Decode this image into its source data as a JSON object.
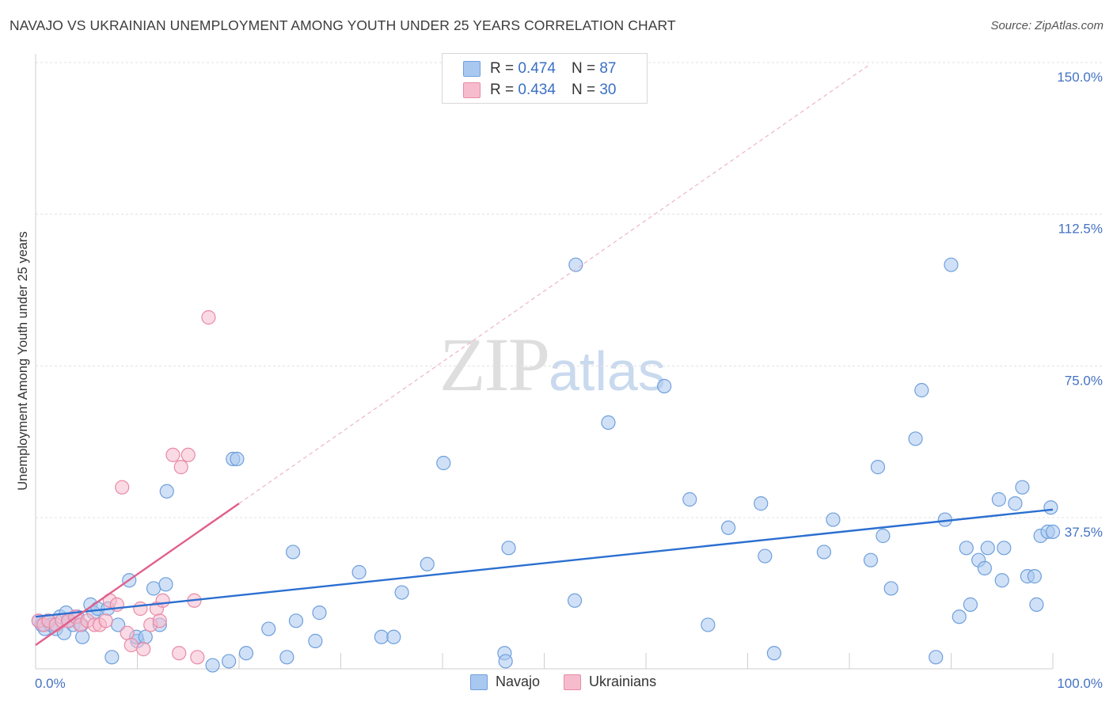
{
  "title": "NAVAJO VS UKRAINIAN UNEMPLOYMENT AMONG YOUTH UNDER 25 YEARS CORRELATION CHART",
  "source": "Source: ZipAtlas.com",
  "watermark": {
    "zip": "ZIP",
    "atlas": "atlas"
  },
  "legend": {
    "rows": [
      {
        "r_label": "R =",
        "r_value": "0.474",
        "n_label": "N =",
        "n_value": "87",
        "color": "#a9c8f0",
        "border": "#6f9fdc"
      },
      {
        "r_label": "R =",
        "r_value": "0.434",
        "n_label": "N =",
        "n_value": "30",
        "color": "#f6bccd",
        "border": "#e88aa6"
      }
    ]
  },
  "bottom_legend": [
    {
      "label": "Navajo",
      "color": "#a9c8f0",
      "border": "#6f9fdc"
    },
    {
      "label": "Ukrainians",
      "color": "#f6bccd",
      "border": "#e88aa6"
    }
  ],
  "chart_data": {
    "type": "scatter",
    "title": "NAVAJO VS UKRAINIAN UNEMPLOYMENT AMONG YOUTH UNDER 25 YEARS CORRELATION CHART",
    "xlabel": "",
    "ylabel": "Unemployment Among Youth under 25 years",
    "xlim": [
      0,
      100
    ],
    "ylim": [
      0,
      150
    ],
    "x_tick_labels": [
      "0.0%",
      "100.0%"
    ],
    "y_ticks": [
      37.5,
      75.0,
      112.5,
      150.0
    ],
    "y_tick_labels": [
      "37.5%",
      "75.0%",
      "112.5%",
      "150.0%"
    ],
    "grid": true,
    "series": [
      {
        "name": "Navajo",
        "color": "#6f9fdc",
        "fill": "#a9c8f0",
        "trend": {
          "x": [
            0,
            100
          ],
          "y": [
            13.0,
            39.5
          ],
          "color": "#2b6fd0"
        },
        "points": [
          [
            0.3,
            12
          ],
          [
            0.6,
            11
          ],
          [
            0.9,
            10
          ],
          [
            1.2,
            12
          ],
          [
            1.5,
            11
          ],
          [
            2.0,
            10
          ],
          [
            2.4,
            13
          ],
          [
            2.8,
            9
          ],
          [
            3.0,
            14
          ],
          [
            3.3,
            12
          ],
          [
            3.7,
            11
          ],
          [
            4.1,
            13
          ],
          [
            4.5,
            11
          ],
          [
            4.6,
            8
          ],
          [
            5.4,
            16
          ],
          [
            5.7,
            14
          ],
          [
            6.1,
            15
          ],
          [
            7.1,
            15
          ],
          [
            7.5,
            3
          ],
          [
            8.1,
            11
          ],
          [
            9.2,
            22
          ],
          [
            10.0,
            7
          ],
          [
            9.9,
            8
          ],
          [
            10.8,
            8
          ],
          [
            11.6,
            20
          ],
          [
            12.8,
            21
          ],
          [
            12.9,
            44
          ],
          [
            12.2,
            11
          ],
          [
            19.4,
            52
          ],
          [
            19.8,
            52
          ],
          [
            19.0,
            2
          ],
          [
            20.7,
            4
          ],
          [
            17.4,
            1
          ],
          [
            22.9,
            10
          ],
          [
            24.7,
            3
          ],
          [
            25.3,
            29
          ],
          [
            25.6,
            12
          ],
          [
            27.5,
            7
          ],
          [
            27.9,
            14
          ],
          [
            31.8,
            24
          ],
          [
            34.0,
            8
          ],
          [
            35.2,
            8
          ],
          [
            36.0,
            19
          ],
          [
            38.5,
            26
          ],
          [
            40.1,
            51
          ],
          [
            46.1,
            4
          ],
          [
            46.2,
            2
          ],
          [
            46.5,
            30
          ],
          [
            53.0,
            17
          ],
          [
            53.1,
            100
          ],
          [
            56.3,
            61
          ],
          [
            61.8,
            70
          ],
          [
            64.3,
            42
          ],
          [
            66.1,
            11
          ],
          [
            68.1,
            35
          ],
          [
            71.3,
            41
          ],
          [
            71.7,
            28
          ],
          [
            72.6,
            4
          ],
          [
            77.5,
            29
          ],
          [
            78.4,
            37
          ],
          [
            82.1,
            27
          ],
          [
            82.8,
            50
          ],
          [
            83.3,
            33
          ],
          [
            84.1,
            20
          ],
          [
            86.5,
            57
          ],
          [
            87.1,
            69
          ],
          [
            88.5,
            3
          ],
          [
            89.4,
            37
          ],
          [
            90.0,
            100
          ],
          [
            90.8,
            13
          ],
          [
            91.5,
            30
          ],
          [
            91.9,
            16
          ],
          [
            92.7,
            27
          ],
          [
            93.3,
            25
          ],
          [
            93.6,
            30
          ],
          [
            94.7,
            42
          ],
          [
            95.0,
            22
          ],
          [
            95.2,
            30
          ],
          [
            96.3,
            41
          ],
          [
            97.0,
            45
          ],
          [
            97.5,
            23
          ],
          [
            98.2,
            23
          ],
          [
            98.4,
            16
          ],
          [
            98.8,
            33
          ],
          [
            99.5,
            34
          ],
          [
            99.8,
            40
          ],
          [
            100,
            34
          ]
        ]
      },
      {
        "name": "Ukrainians",
        "color": "#e88aa6",
        "fill": "#f6bccd",
        "trend": {
          "x": [
            0,
            20
          ],
          "y": [
            6.0,
            41.0
          ],
          "color": "#e0608a",
          "dashed_extension_to_x": 82
        },
        "points": [
          [
            0.3,
            12
          ],
          [
            0.8,
            11
          ],
          [
            1.3,
            12
          ],
          [
            2.0,
            11
          ],
          [
            2.6,
            12
          ],
          [
            3.2,
            12
          ],
          [
            3.9,
            13
          ],
          [
            4.4,
            11
          ],
          [
            5.1,
            12
          ],
          [
            5.8,
            11
          ],
          [
            6.3,
            11
          ],
          [
            6.9,
            12
          ],
          [
            7.3,
            17
          ],
          [
            8.0,
            16
          ],
          [
            8.5,
            45
          ],
          [
            9.0,
            9
          ],
          [
            9.4,
            6
          ],
          [
            10.3,
            15
          ],
          [
            10.6,
            5
          ],
          [
            11.3,
            11
          ],
          [
            11.9,
            15
          ],
          [
            12.2,
            12
          ],
          [
            12.5,
            17
          ],
          [
            13.5,
            53
          ],
          [
            14.1,
            4
          ],
          [
            14.3,
            50
          ],
          [
            15.0,
            53
          ],
          [
            15.6,
            17
          ],
          [
            15.9,
            3
          ],
          [
            17.0,
            87
          ]
        ]
      }
    ]
  }
}
